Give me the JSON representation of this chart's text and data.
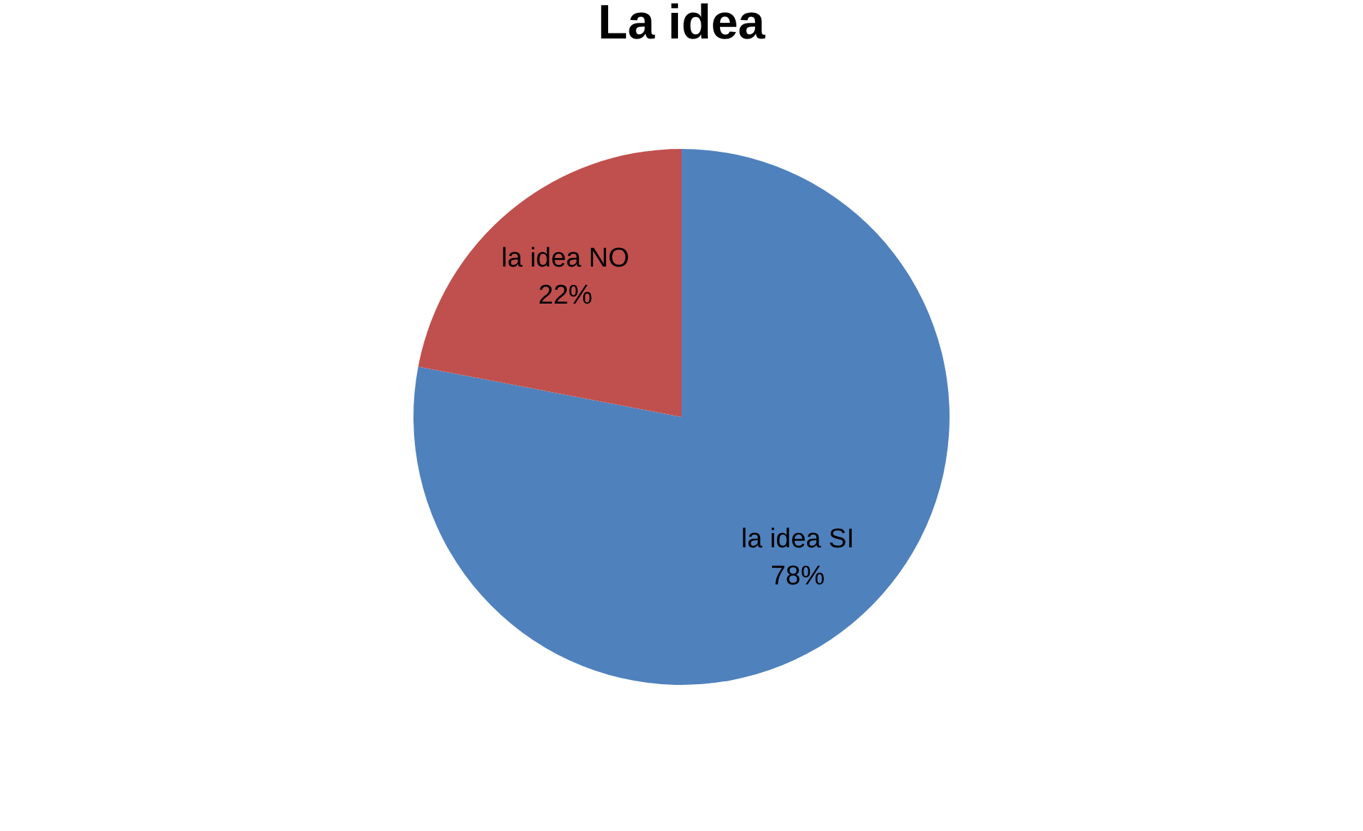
{
  "chart_data": {
    "type": "pie",
    "title": "La idea",
    "categories": [
      "la idea SI",
      "la idea NO"
    ],
    "values": [
      78,
      22
    ],
    "colors": [
      "#4f81bd",
      "#c0504d"
    ],
    "value_labels": [
      "78%",
      "22%"
    ],
    "legend": false
  }
}
